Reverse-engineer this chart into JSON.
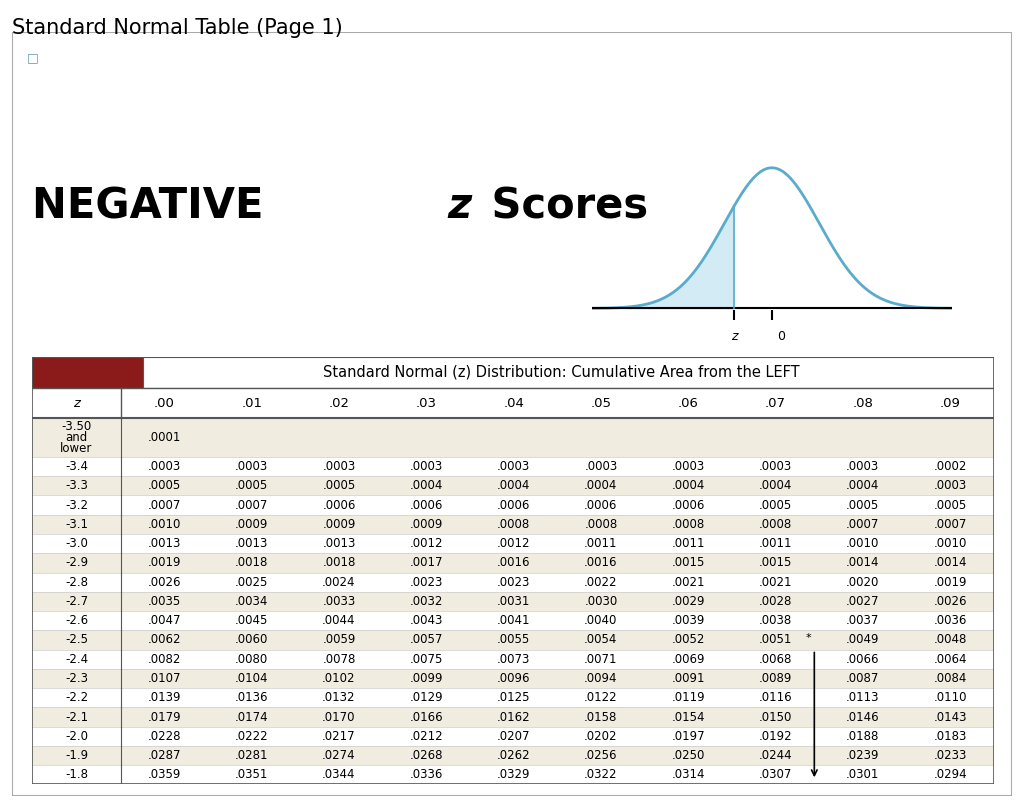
{
  "title": "Standard Normal Table (Page 1)",
  "subtitle": "Standard Normal (z) Distribution: Cumulative Area from the LEFT",
  "col_labels": [
    "z",
    ".00",
    ".01",
    ".02",
    ".03",
    ".04",
    ".05",
    ".06",
    ".07",
    ".08",
    ".09"
  ],
  "rows": [
    [
      "-3.50\nand\nlower",
      ".0001",
      "",
      "",
      "",
      "",
      "",
      "",
      "",
      "",
      ""
    ],
    [
      "-3.4",
      ".0003",
      ".0003",
      ".0003",
      ".0003",
      ".0003",
      ".0003",
      ".0003",
      ".0003",
      ".0003",
      ".0002"
    ],
    [
      "-3.3",
      ".0005",
      ".0005",
      ".0005",
      ".0004",
      ".0004",
      ".0004",
      ".0004",
      ".0004",
      ".0004",
      ".0003"
    ],
    [
      "-3.2",
      ".0007",
      ".0007",
      ".0006",
      ".0006",
      ".0006",
      ".0006",
      ".0006",
      ".0005",
      ".0005",
      ".0005"
    ],
    [
      "-3.1",
      ".0010",
      ".0009",
      ".0009",
      ".0009",
      ".0008",
      ".0008",
      ".0008",
      ".0008",
      ".0007",
      ".0007"
    ],
    [
      "-3.0",
      ".0013",
      ".0013",
      ".0013",
      ".0012",
      ".0012",
      ".0011",
      ".0011",
      ".0011",
      ".0010",
      ".0010"
    ],
    [
      "-2.9",
      ".0019",
      ".0018",
      ".0018",
      ".0017",
      ".0016",
      ".0016",
      ".0015",
      ".0015",
      ".0014",
      ".0014"
    ],
    [
      "-2.8",
      ".0026",
      ".0025",
      ".0024",
      ".0023",
      ".0023",
      ".0022",
      ".0021",
      ".0021",
      ".0020",
      ".0019"
    ],
    [
      "-2.7",
      ".0035",
      ".0034",
      ".0033",
      ".0032",
      ".0031",
      ".0030",
      ".0029",
      ".0028",
      ".0027",
      ".0026"
    ],
    [
      "-2.6",
      ".0047",
      ".0045",
      ".0044",
      ".0043",
      ".0041",
      ".0040",
      ".0039",
      ".0038",
      ".0037",
      ".0036"
    ],
    [
      "-2.5",
      ".0062",
      ".0060",
      ".0059",
      ".0057",
      ".0055",
      ".0054",
      ".0052",
      ".0051",
      ".0049",
      ".0048"
    ],
    [
      "-2.4",
      ".0082",
      ".0080",
      ".0078",
      ".0075",
      ".0073",
      ".0071",
      ".0069",
      ".0068",
      ".0066",
      ".0064"
    ],
    [
      "-2.3",
      ".0107",
      ".0104",
      ".0102",
      ".0099",
      ".0096",
      ".0094",
      ".0091",
      ".0089",
      ".0087",
      ".0084"
    ],
    [
      "-2.2",
      ".0139",
      ".0136",
      ".0132",
      ".0129",
      ".0125",
      ".0122",
      ".0119",
      ".0116",
      ".0113",
      ".0110"
    ],
    [
      "-2.1",
      ".0179",
      ".0174",
      ".0170",
      ".0166",
      ".0162",
      ".0158",
      ".0154",
      ".0150",
      ".0146",
      ".0143"
    ],
    [
      "-2.0",
      ".0228",
      ".0222",
      ".0217",
      ".0212",
      ".0207",
      ".0202",
      ".0197",
      ".0192",
      ".0188",
      ".0183"
    ],
    [
      "-1.9",
      ".0287",
      ".0281",
      ".0274",
      ".0268",
      ".0262",
      ".0256",
      ".0250",
      ".0244",
      ".0239",
      ".0233"
    ],
    [
      "-1.8",
      ".0359",
      ".0351",
      ".0344",
      ".0336",
      ".0329",
      ".0322",
      ".0314",
      ".0307",
      ".0301",
      ".0294"
    ]
  ],
  "bg_color": "#ffffff",
  "table_header_bg": "#8B1A1A",
  "odd_row_bg": "#f0ece0",
  "even_row_bg": "#ffffff",
  "border_color": "#555555",
  "light_border": "#cccccc",
  "outer_border_color": "#aaaaaa",
  "curve_color": "#5aabcc",
  "fill_color": "#cce8f4"
}
